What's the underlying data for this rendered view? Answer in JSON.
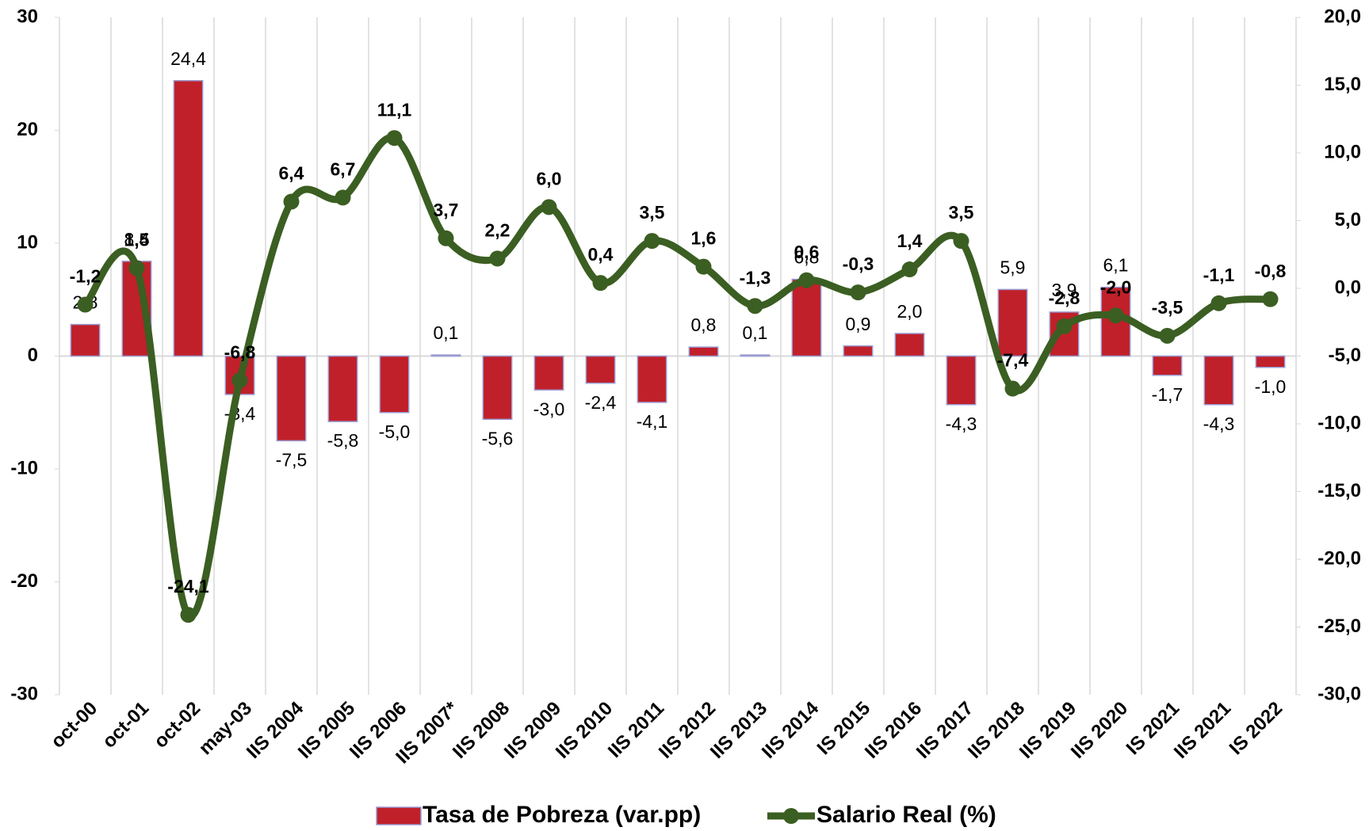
{
  "chart_data": {
    "type": "bar_line",
    "categories": [
      "oct-00",
      "oct-01",
      "oct-02",
      "may-03",
      "IIS 2004",
      "IIS 2005",
      "IIS 2006",
      "IIS 2007*",
      "IIS 2008",
      "IIS 2009",
      "IIS 2010",
      "IIS 2011",
      "IIS 2012",
      "IIS 2013",
      "IIS 2014",
      "IS 2015",
      "IIS 2016",
      "IIS 2017",
      "IIS 2018",
      "IIS 2019",
      "IIS 2020",
      "IS 2021",
      "IIS 2021",
      "IS 2022"
    ],
    "series": [
      {
        "name": "Tasa de Pobreza (var.pp)",
        "type": "bar",
        "color": "#c0202a",
        "axis": "y",
        "values": [
          2.8,
          8.4,
          24.4,
          -3.4,
          -7.5,
          -5.8,
          -5.0,
          0.1,
          -5.6,
          -3.0,
          -2.4,
          -4.1,
          0.8,
          0.1,
          6.8,
          0.9,
          2.0,
          -4.3,
          5.9,
          3.9,
          6.1,
          -1.7,
          -4.3,
          -1.0
        ],
        "value_labels": [
          "2,8",
          "8,4",
          "24,4",
          "-3,4",
          "-7,5",
          "-5,8",
          "-5,0",
          "0,1",
          "-5,6",
          "-3,0",
          "-2,4",
          "-4,1",
          "0,8",
          "0,1",
          "6,8",
          "0,9",
          "2,0",
          "-4,3",
          "5,9",
          "3,9",
          "6,1",
          "-1,7",
          "-4,3",
          "-1,0"
        ]
      },
      {
        "name": "Salario Real (%)",
        "type": "line",
        "color": "#3b5e22",
        "axis": "y2",
        "values": [
          -1.2,
          1.5,
          -24.1,
          -6.8,
          6.4,
          6.7,
          11.1,
          3.7,
          2.2,
          6.0,
          0.4,
          3.5,
          1.6,
          -1.3,
          0.6,
          -0.3,
          1.4,
          3.5,
          -7.4,
          -2.8,
          -2.0,
          -3.5,
          -1.1,
          -0.8
        ],
        "value_labels": [
          "-1,2",
          "1,5",
          "-24,1",
          "-6,8",
          "6,4",
          "6,7",
          "11,1",
          "3,7",
          "2,2",
          "6,0",
          "0,4",
          "3,5",
          "1,6",
          "-1,3",
          "0,6",
          "-0,3",
          "1,4",
          "3,5",
          "-7,4",
          "-2,8",
          "-2,0",
          "-3,5",
          "-1,1",
          "-0,8"
        ]
      }
    ],
    "ylim": [
      -30,
      30
    ],
    "yticks": [
      -30,
      -20,
      -10,
      0,
      10,
      20,
      30
    ],
    "y2lim": [
      -30,
      20
    ],
    "y2ticks": [
      {
        "value": -30,
        "label": "-30,0"
      },
      {
        "value": -25,
        "label": "-25,0"
      },
      {
        "value": -20,
        "label": "-20,0"
      },
      {
        "value": -15,
        "label": "-15,0"
      },
      {
        "value": -10,
        "label": "-10,0"
      },
      {
        "value": -5,
        "label": "-5,0"
      },
      {
        "value": 0,
        "label": "0,0"
      },
      {
        "value": 5,
        "label": "5,0"
      },
      {
        "value": 10,
        "label": "10,0"
      },
      {
        "value": 15,
        "label": "15,0"
      },
      {
        "value": 20,
        "label": "20,0"
      }
    ],
    "legend": "bottom"
  }
}
